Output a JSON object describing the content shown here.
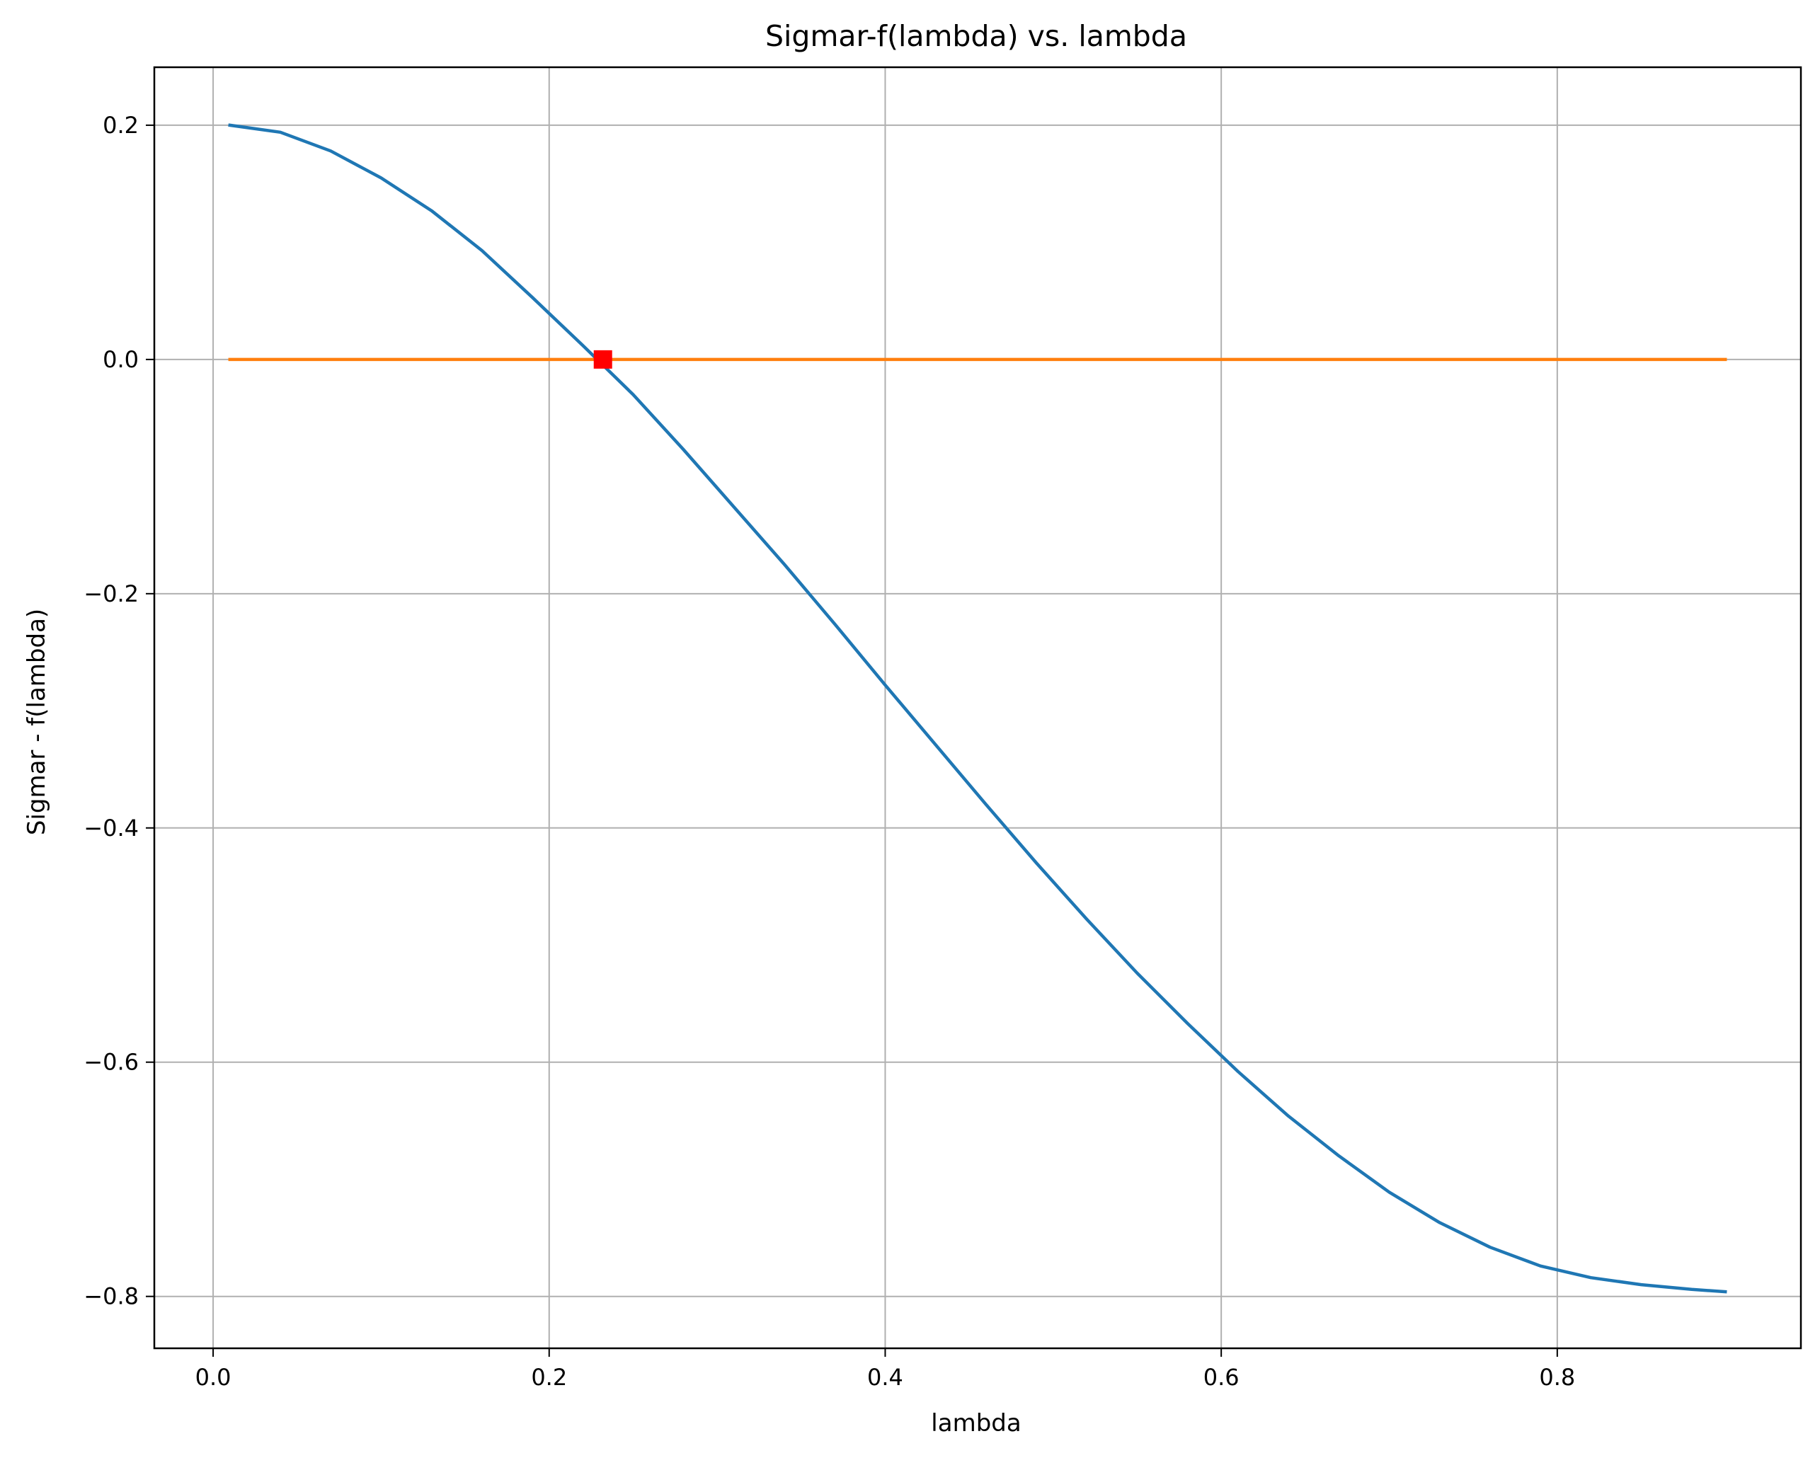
{
  "chart_data": {
    "type": "line",
    "title": "Sigmar-f(lambda) vs. lambda",
    "xlabel": "lambda",
    "ylabel": "Sigmar - f(lambda)",
    "xlim": [
      -0.035,
      0.945
    ],
    "ylim": [
      -0.8443,
      0.2495
    ],
    "xticks": [
      0.0,
      0.2,
      0.4,
      0.6,
      0.8
    ],
    "xtick_labels": [
      "0.0",
      "0.2",
      "0.4",
      "0.6",
      "0.8"
    ],
    "yticks": [
      0.2,
      0.0,
      -0.2,
      -0.4,
      -0.6,
      -0.8
    ],
    "ytick_labels": [
      "0.2",
      "0.0",
      "−0.2",
      "−0.4",
      "−0.6",
      "−0.8"
    ],
    "grid": true,
    "legend": "none",
    "series": [
      {
        "color": "#1f77b4",
        "x": [
          0.01,
          0.04,
          0.07,
          0.1,
          0.13,
          0.16,
          0.19,
          0.22,
          0.25,
          0.28,
          0.31,
          0.34,
          0.37,
          0.4,
          0.43,
          0.46,
          0.49,
          0.52,
          0.55,
          0.58,
          0.61,
          0.64,
          0.67,
          0.7,
          0.73,
          0.76,
          0.79,
          0.82,
          0.85,
          0.88,
          0.9
        ],
        "y": [
          0.2,
          0.194,
          0.178,
          0.155,
          0.127,
          0.093,
          0.053,
          0.012,
          -0.03,
          -0.077,
          -0.126,
          -0.175,
          -0.226,
          -0.278,
          -0.329,
          -0.38,
          -0.43,
          -0.478,
          -0.524,
          -0.567,
          -0.608,
          -0.646,
          -0.68,
          -0.711,
          -0.737,
          -0.758,
          -0.774,
          -0.784,
          -0.79,
          -0.794,
          -0.796
        ]
      },
      {
        "color": "#ff7f0e",
        "x": [
          0.01,
          0.9
        ],
        "y": [
          0.0,
          0.0
        ]
      }
    ],
    "markers": [
      {
        "x": 0.232,
        "y": 0.0,
        "shape": "square",
        "color": "#ff0000"
      }
    ]
  }
}
